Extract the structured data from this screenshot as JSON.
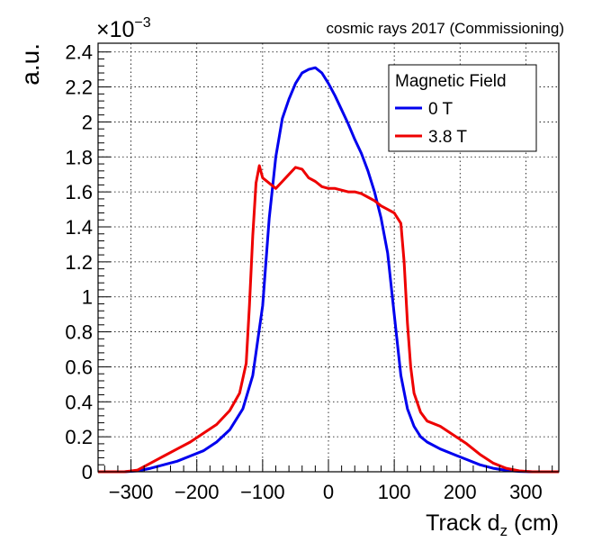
{
  "chart_data": {
    "type": "line",
    "top_note": "cosmic rays 2017 (Commissioning)",
    "ylabel": "a.u.",
    "xlabel_main": "Track d",
    "xlabel_sub": "z",
    "xlabel_unit": " (cm)",
    "y_multiplier_base": "×10",
    "y_multiplier_exp": "−3",
    "xlim": [
      -350,
      350
    ],
    "ylim": [
      0,
      2.45
    ],
    "x_ticks": [
      -300,
      -200,
      -100,
      0,
      100,
      200,
      300
    ],
    "x_tick_labels": [
      "−300",
      "−200",
      "−100",
      "0",
      "100",
      "200",
      "300"
    ],
    "y_ticks": [
      0,
      0.2,
      0.4,
      0.6,
      0.8,
      1,
      1.2,
      1.4,
      1.6,
      1.8,
      2,
      2.2,
      2.4
    ],
    "y_tick_labels": [
      "0",
      "0.2",
      "0.4",
      "0.6",
      "0.8",
      "1",
      "1.2",
      "1.4",
      "1.6",
      "1.8",
      "2",
      "2.2",
      "2.4"
    ],
    "grid": true,
    "legend": {
      "title": "Magnetic Field",
      "placement": "top-right"
    },
    "series": [
      {
        "name": "0 T",
        "color": "#0000ee",
        "x": [
          -350,
          -310,
          -290,
          -270,
          -250,
          -230,
          -210,
          -190,
          -170,
          -150,
          -130,
          -115,
          -100,
          -90,
          -80,
          -70,
          -60,
          -50,
          -40,
          -30,
          -20,
          -10,
          0,
          10,
          20,
          30,
          40,
          50,
          60,
          70,
          80,
          90,
          100,
          110,
          120,
          130,
          140,
          150,
          170,
          190,
          210,
          230,
          250,
          270,
          290,
          310,
          350
        ],
        "y": [
          0,
          0,
          0.005,
          0.02,
          0.04,
          0.06,
          0.09,
          0.12,
          0.17,
          0.24,
          0.36,
          0.55,
          0.95,
          1.45,
          1.8,
          2.02,
          2.13,
          2.22,
          2.28,
          2.3,
          2.31,
          2.28,
          2.22,
          2.15,
          2.07,
          1.99,
          1.9,
          1.82,
          1.72,
          1.6,
          1.45,
          1.25,
          0.9,
          0.55,
          0.36,
          0.26,
          0.2,
          0.17,
          0.13,
          0.1,
          0.07,
          0.04,
          0.02,
          0.008,
          0.002,
          0,
          0
        ]
      },
      {
        "name": "3.8 T",
        "color": "#ee0000",
        "x": [
          -350,
          -310,
          -290,
          -270,
          -250,
          -230,
          -210,
          -190,
          -170,
          -150,
          -135,
          -125,
          -120,
          -115,
          -110,
          -105,
          -100,
          -90,
          -80,
          -70,
          -60,
          -50,
          -40,
          -30,
          -20,
          -10,
          0,
          10,
          20,
          30,
          40,
          50,
          60,
          70,
          80,
          90,
          100,
          110,
          115,
          120,
          125,
          130,
          140,
          150,
          170,
          190,
          210,
          230,
          250,
          270,
          290,
          310,
          350
        ],
        "y": [
          0,
          0,
          0.01,
          0.05,
          0.09,
          0.13,
          0.17,
          0.22,
          0.27,
          0.35,
          0.45,
          0.62,
          0.95,
          1.35,
          1.65,
          1.75,
          1.68,
          1.65,
          1.62,
          1.66,
          1.7,
          1.74,
          1.73,
          1.68,
          1.66,
          1.63,
          1.62,
          1.62,
          1.61,
          1.6,
          1.6,
          1.59,
          1.57,
          1.55,
          1.52,
          1.5,
          1.48,
          1.42,
          1.2,
          0.85,
          0.6,
          0.45,
          0.34,
          0.29,
          0.26,
          0.21,
          0.16,
          0.1,
          0.05,
          0.02,
          0.005,
          0,
          0
        ]
      }
    ]
  }
}
